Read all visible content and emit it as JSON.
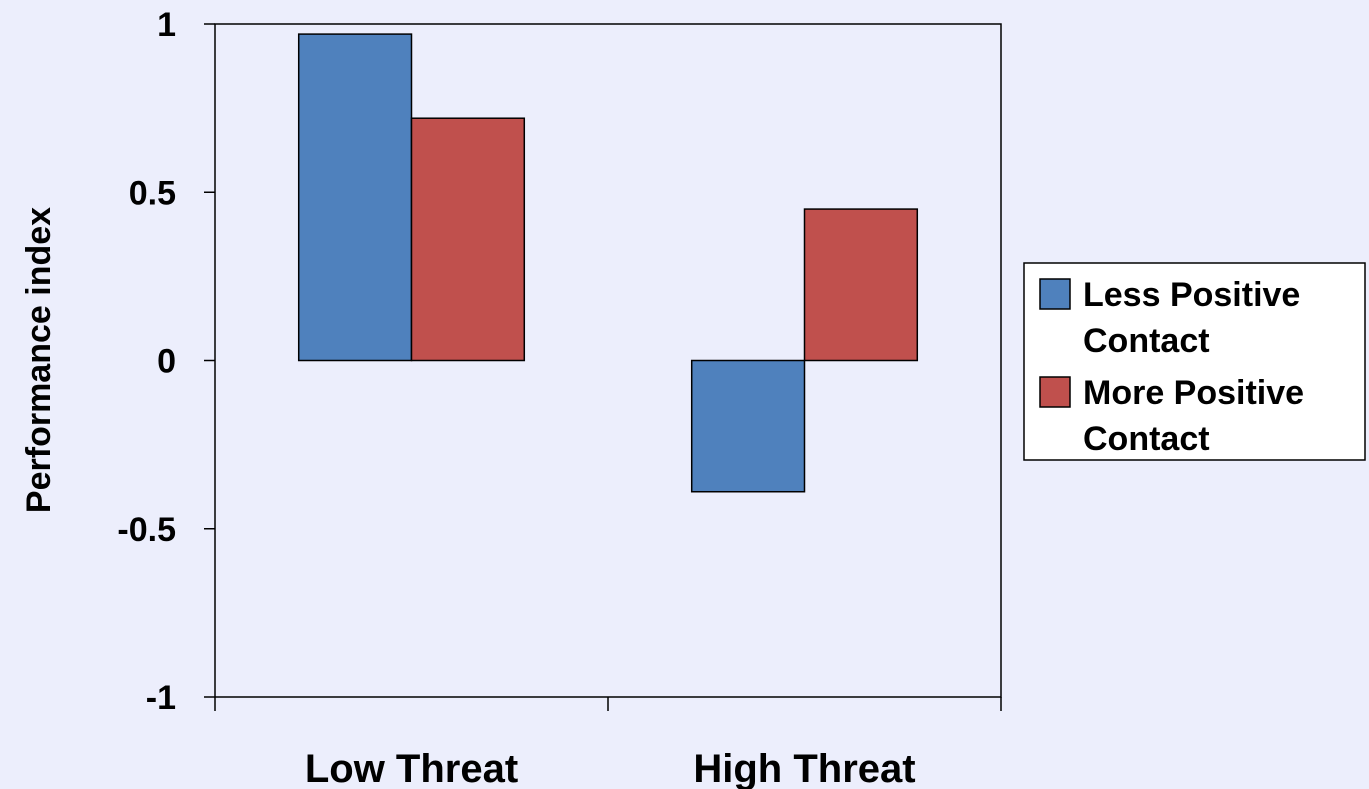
{
  "chart_data": {
    "type": "bar",
    "title": "",
    "xlabel": "",
    "ylabel": "Performance index",
    "ylim": [
      -1,
      1
    ],
    "yticks": [
      1,
      0.5,
      0,
      -0.5,
      -1
    ],
    "ytick_labels": [
      "1",
      "0.5",
      "0",
      "-0.5",
      "-1"
    ],
    "categories": [
      "Low Threat",
      "High Threat"
    ],
    "series": [
      {
        "name": "Less Positive Contact",
        "legend_lines": [
          "Less Positive",
          "Contact"
        ],
        "color": "#4F81BD",
        "values": [
          0.97,
          -0.39
        ]
      },
      {
        "name": "More Positive Contact",
        "legend_lines": [
          "More Positive",
          "Contact"
        ],
        "color": "#C0504D",
        "values": [
          0.72,
          0.45
        ]
      }
    ],
    "grid": false,
    "legend_position": "right",
    "background": "#ECEEFC"
  }
}
